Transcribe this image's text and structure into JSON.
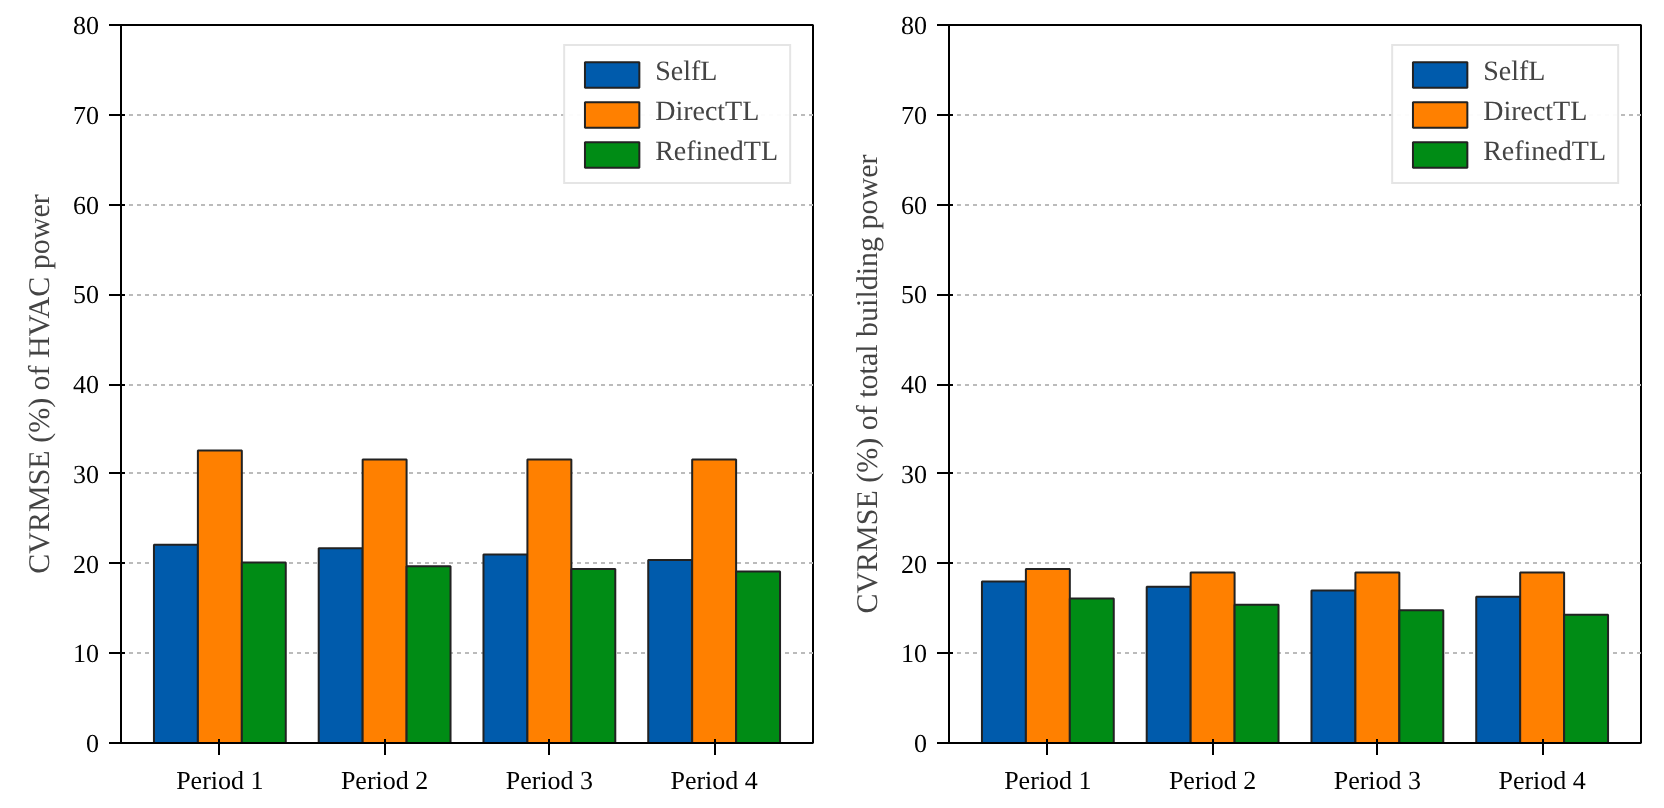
{
  "chart_data": [
    {
      "type": "bar",
      "ylabel": "CVRMSE (%) of HVAC power",
      "categories": [
        "Period 1",
        "Period 2",
        "Period 3",
        "Period 4"
      ],
      "series": [
        {
          "name": "SelfL",
          "color": "#005bac",
          "values": [
            22.1,
            21.7,
            21.0,
            20.4
          ]
        },
        {
          "name": "DirectTL",
          "color": "#ff8000",
          "values": [
            32.6,
            31.6,
            31.6,
            31.6
          ]
        },
        {
          "name": "RefinedTL",
          "color": "#008c15",
          "values": [
            20.1,
            19.7,
            19.4,
            19.1
          ]
        }
      ],
      "ylim": [
        0,
        80
      ],
      "yticks": [
        0,
        10,
        20,
        30,
        40,
        50,
        60,
        70,
        80
      ],
      "grid": "y",
      "legend": "top right"
    },
    {
      "type": "bar",
      "ylabel": "CVRMSE (%) of total building power",
      "categories": [
        "Period 1",
        "Period 2",
        "Period 3",
        "Period 4"
      ],
      "series": [
        {
          "name": "SelfL",
          "color": "#005bac",
          "values": [
            18.0,
            17.4,
            17.0,
            16.3
          ]
        },
        {
          "name": "DirectTL",
          "color": "#ff8000",
          "values": [
            19.4,
            19.0,
            19.0,
            19.0
          ]
        },
        {
          "name": "RefinedTL",
          "color": "#008c15",
          "values": [
            16.1,
            15.4,
            14.8,
            14.3
          ]
        }
      ],
      "ylim": [
        0,
        80
      ],
      "yticks": [
        0,
        10,
        20,
        30,
        40,
        50,
        60,
        70,
        80
      ],
      "grid": "y",
      "legend": "top right"
    }
  ]
}
